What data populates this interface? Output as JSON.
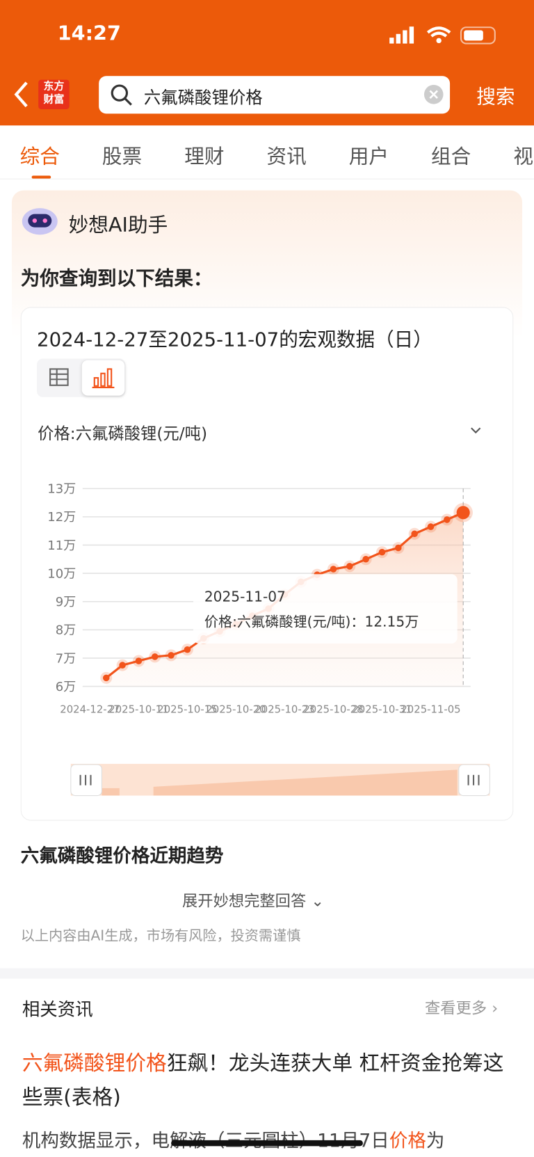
{
  "status": {
    "time": "14:27"
  },
  "nav": {
    "logo_top": "东方",
    "logo_bottom": "财富",
    "query": "六氟磷酸锂价格",
    "search": "搜索"
  },
  "tabs": [
    "综合",
    "股票",
    "理财",
    "资讯",
    "用户",
    "组合",
    "视"
  ],
  "ai": {
    "name": "妙想AI助手",
    "intro": "为你查询到以下结果：",
    "card_title": "2024-12-27至2025-11-07的宏观数据（日）",
    "section": "六氟磷酸锂价格近期趋势",
    "expand": "展开妙想完整回答",
    "disclaimer": "以上内容由AI生成，市场有风险，投资需谨慎"
  },
  "chart_data": {
    "type": "line",
    "categories": [
      "2024-12-27",
      null,
      null,
      "2025-10-11",
      null,
      null,
      "2025-10-15",
      null,
      null,
      "2025-10-20",
      null,
      null,
      "2025-10-23",
      null,
      null,
      "2025-10-28",
      null,
      null,
      "2025-10-31",
      null,
      null,
      "2025-11-05",
      null,
      null
    ],
    "series": [
      {
        "name": "价格:六氟磷酸锂(元/吨)",
        "color": "#f2541b",
        "values": [
          null,
          6.3,
          6.75,
          6.9,
          7.05,
          7.1,
          7.3,
          7.7,
          7.95,
          8.2,
          8.5,
          8.75,
          9.25,
          9.7,
          9.95,
          10.15,
          10.25,
          10.5,
          10.75,
          10.9,
          11.4,
          11.65,
          11.9,
          12.15
        ]
      }
    ],
    "ylim": [
      6,
      13
    ],
    "yticks": [
      {
        "value": 6,
        "label": "6万"
      },
      {
        "value": 7,
        "label": "7万"
      },
      {
        "value": 8,
        "label": "8万"
      },
      {
        "value": 9,
        "label": "9万"
      },
      {
        "value": 10,
        "label": "10万"
      },
      {
        "value": 11,
        "label": "11万"
      },
      {
        "value": 12,
        "label": "12万"
      },
      {
        "value": 13,
        "label": "13万"
      }
    ],
    "grid": true,
    "tooltip": {
      "date": "2025-11-07",
      "label": "价格:六氟磷酸锂(元/吨)：",
      "value_label": "12.15万"
    }
  },
  "news": {
    "header": "相关资讯",
    "more": "查看更多",
    "title_hl": "六氟磷酸锂价格",
    "title_rest": "狂飙！龙头连获大单 杠杆资金抢筹这些票(表格)",
    "snippet_a": "机构数据显示，电解液（三元圆柱）11月7日",
    "snippet_hl": "价格",
    "snippet_b": "为"
  }
}
